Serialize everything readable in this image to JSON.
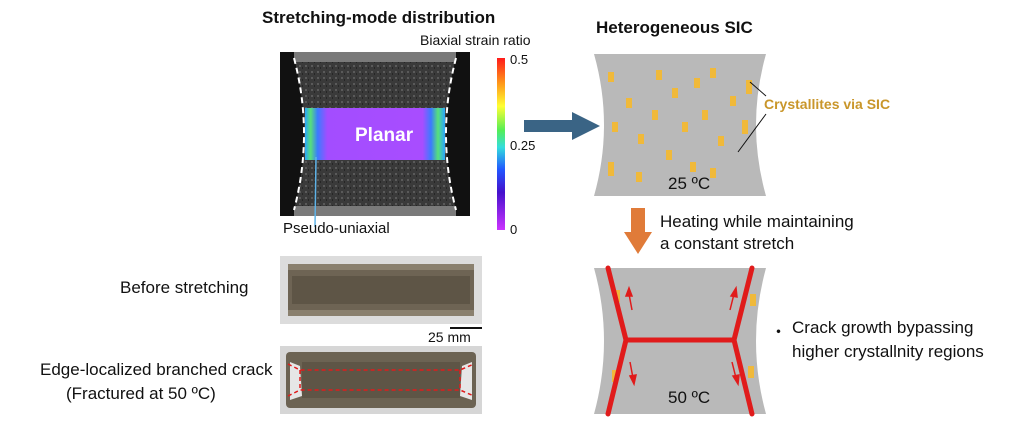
{
  "left_panel": {
    "title": "Stretching-mode distribution",
    "colorbar_title": "Biaxial strain ratio",
    "colorbar_ticks": [
      "0.5",
      "0.25",
      "0"
    ],
    "region_label": "Planar",
    "pointer_label": "Pseudo-uniaxial"
  },
  "specimens": {
    "before_label": "Before stretching",
    "scale_bar": "25 mm",
    "crack_label_line1": "Edge-localized branched crack",
    "crack_label_line2": "(Fractured at 50 ºC)"
  },
  "right_panel": {
    "title": "Heterogeneous SIC",
    "crystallites_label": "Crystallites via SIC",
    "temp_top": "25 ºC",
    "step_line1": "Heating while maintaining",
    "step_line2": "a constant stretch",
    "temp_bottom": "50 ºC",
    "bullet": "・",
    "crack_note_line1": "Crack growth bypassing",
    "crack_note_line2": "higher crystallnity regions"
  },
  "colors": {
    "arrow_blue": "#3a6485",
    "arrow_orange": "#e07b39",
    "crystallite": "#f0b93a",
    "crystallite_text": "#c9962a",
    "crack_red": "#e01b1b",
    "sheet_gray": "#b9b9b9",
    "planar_purple": "#a64dff"
  }
}
